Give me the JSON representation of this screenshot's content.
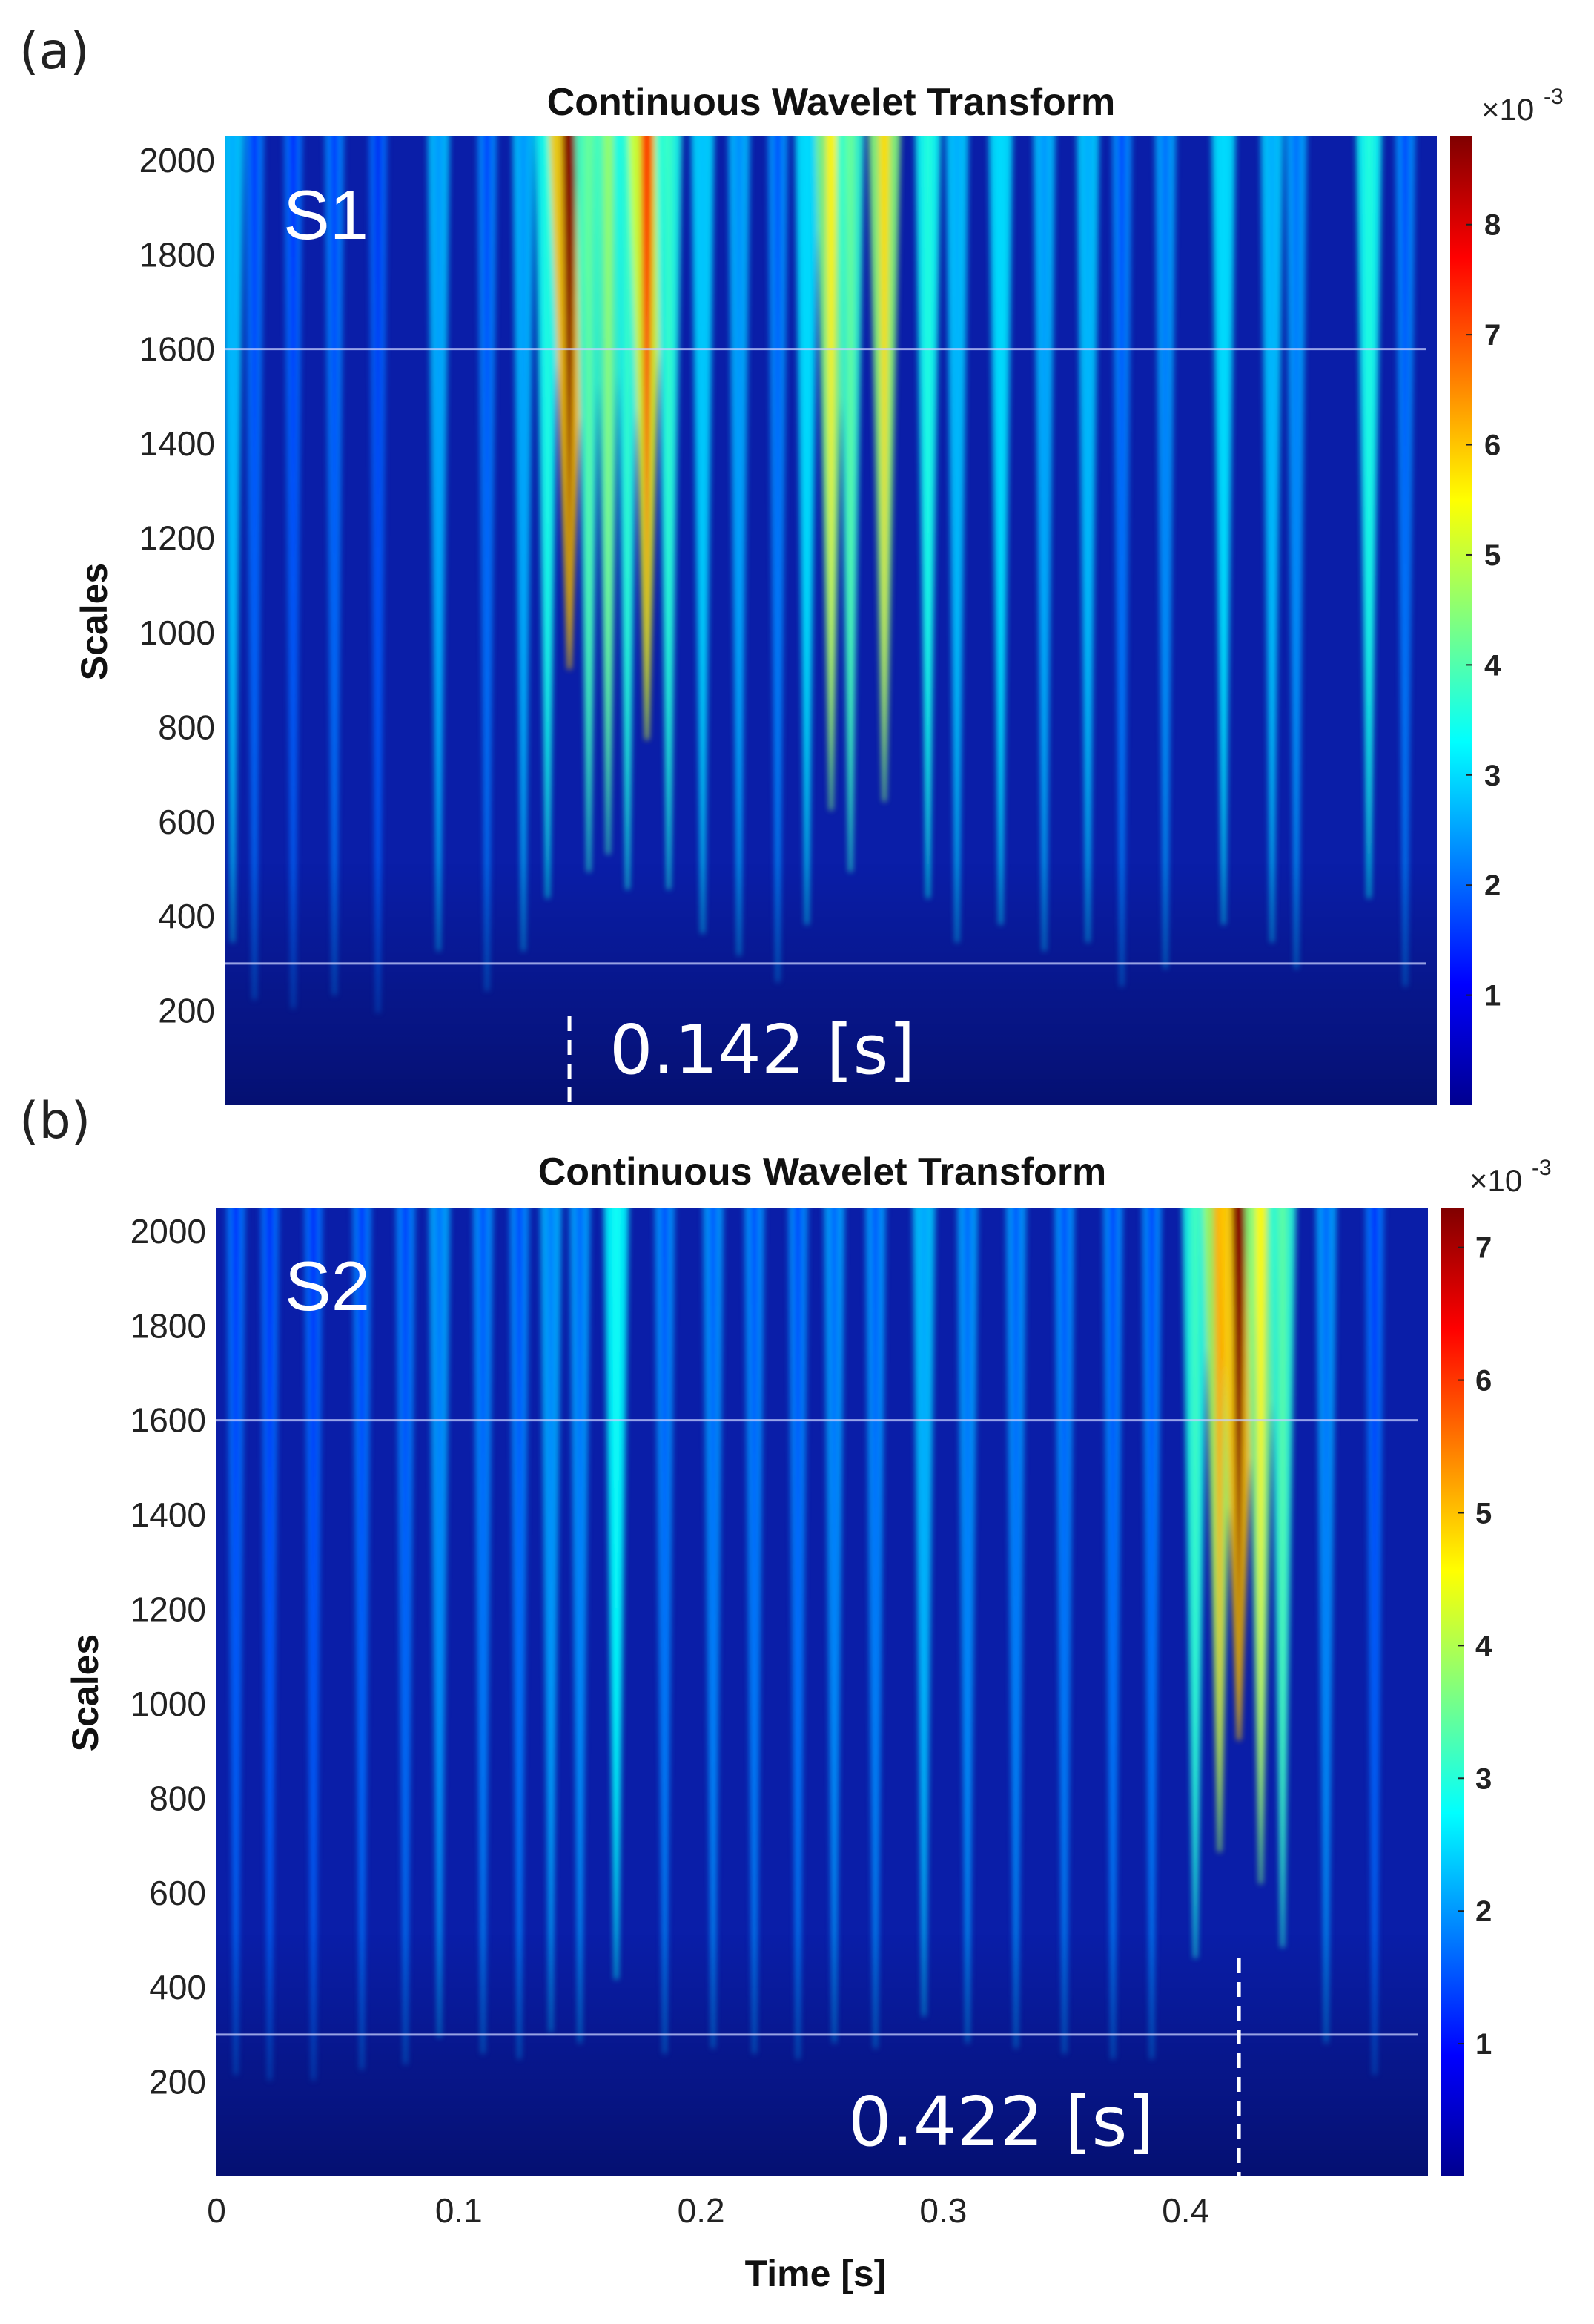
{
  "figure": {
    "panels": [
      {
        "tag": "(a)",
        "series": "S1",
        "annotation": "0.142 [s]"
      },
      {
        "tag": "(b)",
        "series": "S2",
        "annotation": "0.422 [s]"
      }
    ]
  },
  "chart_data": [
    {
      "type": "heatmap",
      "title": "Continuous Wavelet Transform",
      "panel": "(a)",
      "series_label": "S1",
      "xlabel": "",
      "ylabel": "Scales",
      "xlim": [
        0,
        0.5
      ],
      "ylim": [
        0,
        2050
      ],
      "y_ticks": [
        200,
        400,
        600,
        800,
        1000,
        1200,
        1400,
        1600,
        1800,
        2000
      ],
      "y_tick_labels": [
        "200",
        "400",
        "600",
        "800",
        "1000",
        "1200",
        "1400",
        "1600",
        "1800",
        "2000"
      ],
      "x_ticks": [],
      "x_tick_labels": [],
      "colormap": "jet",
      "colorbar": {
        "range": [
          0,
          8.8
        ],
        "ticks": [
          1,
          2,
          3,
          4,
          5,
          6,
          7,
          8
        ],
        "tick_labels": [
          "1",
          "2",
          "3",
          "4",
          "5",
          "6",
          "7",
          "8"
        ],
        "multiplier_base": "×10",
        "multiplier_exp": "-3"
      },
      "reference_lines_scale": [
        300,
        1600
      ],
      "marker_time_s": 0.142,
      "marker_label": "0.142 [s]",
      "ridges": [
        {
          "t": 0.003,
          "amp": 2.6
        },
        {
          "t": 0.012,
          "amp": 1.3
        },
        {
          "t": 0.028,
          "amp": 1.1
        },
        {
          "t": 0.045,
          "amp": 1.4
        },
        {
          "t": 0.063,
          "amp": 1.0
        },
        {
          "t": 0.088,
          "amp": 2.4
        },
        {
          "t": 0.108,
          "amp": 1.5
        },
        {
          "t": 0.123,
          "amp": 2.4
        },
        {
          "t": 0.133,
          "amp": 3.6
        },
        {
          "t": 0.142,
          "amp": 8.8
        },
        {
          "t": 0.15,
          "amp": 4.2
        },
        {
          "t": 0.158,
          "amp": 4.6
        },
        {
          "t": 0.166,
          "amp": 3.8
        },
        {
          "t": 0.174,
          "amp": 7.2
        },
        {
          "t": 0.183,
          "amp": 3.8
        },
        {
          "t": 0.197,
          "amp": 2.8
        },
        {
          "t": 0.212,
          "amp": 2.3
        },
        {
          "t": 0.228,
          "amp": 1.7
        },
        {
          "t": 0.24,
          "amp": 3.0
        },
        {
          "t": 0.25,
          "amp": 5.6
        },
        {
          "t": 0.258,
          "amp": 4.2
        },
        {
          "t": 0.272,
          "amp": 5.8
        },
        {
          "t": 0.29,
          "amp": 3.6
        },
        {
          "t": 0.302,
          "amp": 2.6
        },
        {
          "t": 0.32,
          "amp": 3.0
        },
        {
          "t": 0.338,
          "amp": 2.4
        },
        {
          "t": 0.356,
          "amp": 2.6
        },
        {
          "t": 0.37,
          "amp": 1.6
        },
        {
          "t": 0.388,
          "amp": 2.0
        },
        {
          "t": 0.412,
          "amp": 3.0
        },
        {
          "t": 0.432,
          "amp": 2.6
        },
        {
          "t": 0.442,
          "amp": 2.0
        },
        {
          "t": 0.472,
          "amp": 3.6
        },
        {
          "t": 0.487,
          "amp": 1.6
        }
      ]
    },
    {
      "type": "heatmap",
      "title": "Continuous Wavelet Transform",
      "panel": "(b)",
      "series_label": "S2",
      "xlabel": "Time [s]",
      "ylabel": "Scales",
      "xlim": [
        0,
        0.5
      ],
      "ylim": [
        0,
        2050
      ],
      "y_ticks": [
        200,
        400,
        600,
        800,
        1000,
        1200,
        1400,
        1600,
        1800,
        2000
      ],
      "y_tick_labels": [
        "200",
        "400",
        "600",
        "800",
        "1000",
        "1200",
        "1400",
        "1600",
        "1800",
        "2000"
      ],
      "x_ticks": [
        0,
        0.1,
        0.2,
        0.3,
        0.4
      ],
      "x_tick_labels": [
        "0",
        "0.1",
        "0.2",
        "0.3",
        "0.4"
      ],
      "colormap": "jet",
      "colorbar": {
        "range": [
          0,
          7.3
        ],
        "ticks": [
          1,
          2,
          3,
          4,
          5,
          6,
          7
        ],
        "tick_labels": [
          "1",
          "2",
          "3",
          "4",
          "5",
          "6",
          "7"
        ],
        "multiplier_base": "×10",
        "multiplier_exp": "-3"
      },
      "reference_lines_scale": [
        300,
        1600
      ],
      "marker_time_s": 0.422,
      "marker_label": "0.422 [s]",
      "ridges": [
        {
          "t": 0.008,
          "amp": 1.0
        },
        {
          "t": 0.022,
          "amp": 0.9
        },
        {
          "t": 0.04,
          "amp": 0.9
        },
        {
          "t": 0.06,
          "amp": 1.1
        },
        {
          "t": 0.078,
          "amp": 1.2
        },
        {
          "t": 0.092,
          "amp": 1.7
        },
        {
          "t": 0.11,
          "amp": 1.4
        },
        {
          "t": 0.125,
          "amp": 1.3
        },
        {
          "t": 0.138,
          "amp": 1.8
        },
        {
          "t": 0.15,
          "amp": 1.6
        },
        {
          "t": 0.165,
          "amp": 2.8
        },
        {
          "t": 0.185,
          "amp": 1.4
        },
        {
          "t": 0.205,
          "amp": 1.5
        },
        {
          "t": 0.222,
          "amp": 1.4
        },
        {
          "t": 0.24,
          "amp": 1.3
        },
        {
          "t": 0.255,
          "amp": 1.6
        },
        {
          "t": 0.272,
          "amp": 1.5
        },
        {
          "t": 0.292,
          "amp": 2.1
        },
        {
          "t": 0.31,
          "amp": 1.6
        },
        {
          "t": 0.33,
          "amp": 1.5
        },
        {
          "t": 0.35,
          "amp": 1.4
        },
        {
          "t": 0.37,
          "amp": 1.3
        },
        {
          "t": 0.386,
          "amp": 1.3
        },
        {
          "t": 0.404,
          "amp": 3.2
        },
        {
          "t": 0.414,
          "amp": 5.2
        },
        {
          "t": 0.422,
          "amp": 7.3
        },
        {
          "t": 0.431,
          "amp": 4.6
        },
        {
          "t": 0.44,
          "amp": 3.4
        },
        {
          "t": 0.458,
          "amp": 1.6
        },
        {
          "t": 0.478,
          "amp": 1.0
        }
      ]
    }
  ]
}
